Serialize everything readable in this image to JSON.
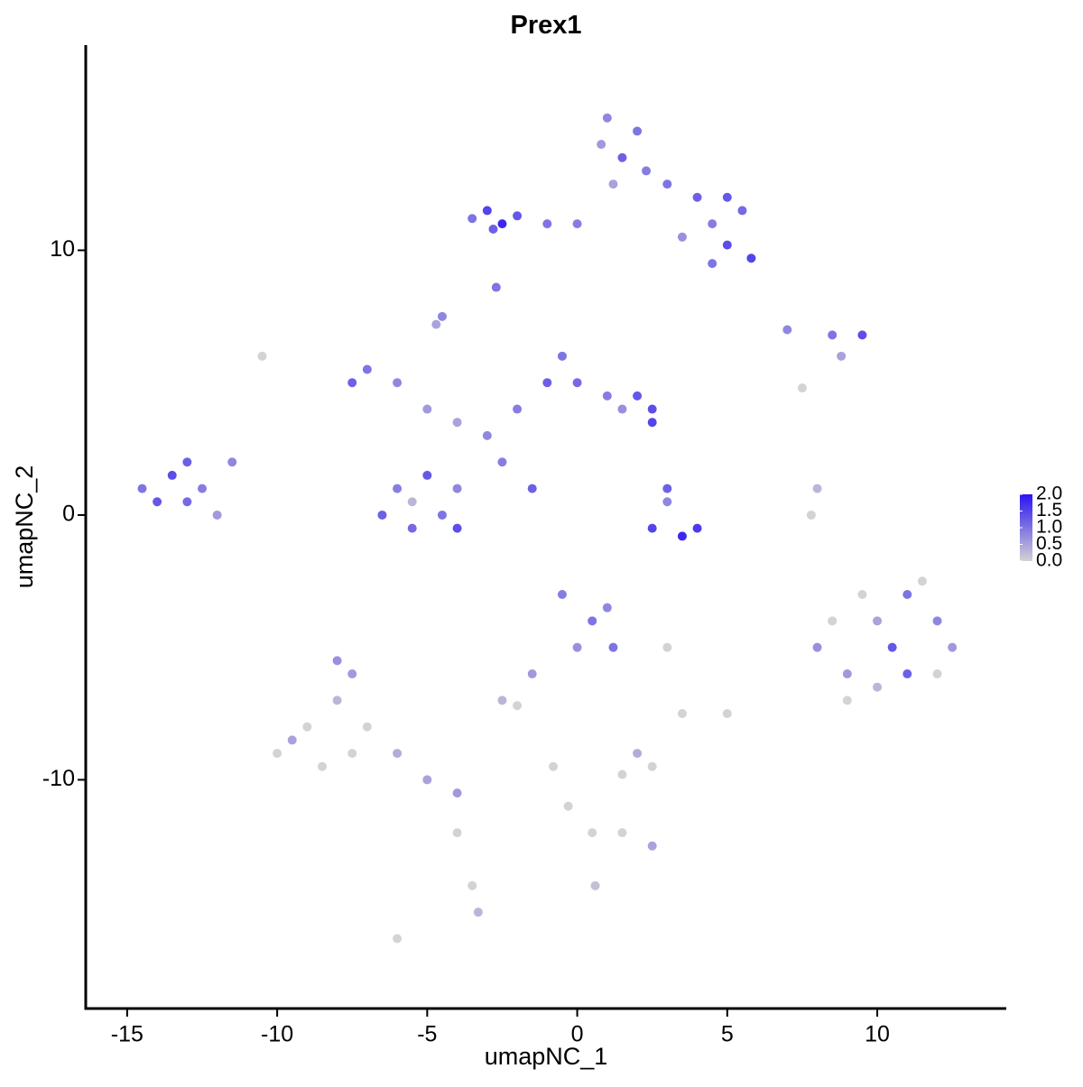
{
  "chart_data": {
    "type": "scatter",
    "title": "Prex1",
    "x_label": "umapNC_1",
    "y_label": "umapNC_2",
    "xlim": [
      -16.38,
      14.3
    ],
    "ylim": [
      -18.64,
      17.75
    ],
    "xticks": [
      -15,
      -10,
      -5,
      0,
      5,
      10
    ],
    "yticks": [
      -10,
      0,
      10
    ],
    "color_low": "#d3d3d3",
    "color_high": "#2a14f2",
    "clim": [
      0,
      2
    ],
    "legend_ticks": [
      {
        "value": 2,
        "label": "2.0"
      },
      {
        "value": 1.5,
        "label": "1.5"
      },
      {
        "value": 1,
        "label": "1.0"
      },
      {
        "value": 0.5,
        "label": "0.5"
      },
      {
        "value": 0,
        "label": "0.0"
      }
    ],
    "x": [
      1,
      2,
      1.5,
      0.8,
      2.3,
      1.2,
      3,
      4,
      5,
      5.5,
      4.5,
      5,
      5.8,
      4.5,
      3.5,
      -3,
      -2.5,
      -2,
      -1,
      0,
      -2.8,
      -3.5,
      -2.7,
      7,
      8.5,
      9.5,
      8.8,
      -7,
      -7.5,
      -6,
      -5,
      -4,
      -3,
      -2,
      -1,
      -0.5,
      0,
      1,
      2,
      2.5,
      2.5,
      1.5,
      -4.5,
      -2.5,
      -1.5,
      -6,
      -6.5,
      -5.5,
      -4.5,
      -4,
      -5,
      -4,
      -5.5,
      -14.5,
      -13.5,
      -13,
      -12.5,
      -12,
      -11.5,
      -14,
      -13,
      3,
      2.5,
      3.5,
      4,
      3,
      8,
      7.8,
      8,
      9,
      10,
      11,
      12,
      12.5,
      11,
      10,
      9,
      12,
      10.5,
      9.5,
      11.5,
      8.5,
      -0.5,
      0.5,
      0,
      1,
      1.2,
      -1.5,
      -2.5,
      -2,
      3,
      -10,
      -9,
      -8,
      -8.5,
      -7.5,
      -9.5,
      -7,
      -6,
      -5,
      -4,
      -8,
      -7.5,
      -3.5,
      -3.3,
      -4,
      2.5,
      2,
      1.5,
      5,
      3.5,
      -0.8,
      -0.3,
      0.5,
      1.5,
      2.5,
      0.6,
      -6,
      -10.5,
      7.5,
      -4.7
    ],
    "y": [
      15,
      14.5,
      13.5,
      14,
      13,
      12.5,
      12.5,
      12,
      12,
      11.5,
      11,
      10.2,
      9.7,
      9.5,
      10.5,
      11.5,
      11,
      11.3,
      11,
      11,
      10.8,
      11.2,
      8.6,
      7,
      6.8,
      6.8,
      6,
      5.5,
      5,
      5,
      4,
      3.5,
      3,
      4,
      5,
      6,
      5,
      4.5,
      4.5,
      4,
      3.5,
      4,
      7.5,
      2,
      1,
      1,
      0,
      -0.5,
      0,
      1,
      1.5,
      -0.5,
      0.5,
      1,
      1.5,
      0.5,
      1,
      0,
      2,
      0.5,
      2,
      1,
      -0.5,
      -0.8,
      -0.5,
      0.5,
      1,
      0,
      -5,
      -6,
      -4,
      -3,
      -4,
      -5,
      -6,
      -6.5,
      -7,
      -6,
      -5,
      -3,
      -2.5,
      -4,
      -3,
      -4,
      -5,
      -3.5,
      -5,
      -6,
      -7,
      -7.2,
      -5,
      -9,
      -8,
      -7,
      -9.5,
      -6,
      -8.5,
      -8,
      -9,
      -10,
      -10.5,
      -5.5,
      -9,
      -14,
      -15,
      -12,
      -9.5,
      -9,
      -9.8,
      -7.5,
      -7.5,
      -9.5,
      -11,
      -12,
      -12,
      -12.5,
      -14,
      -16,
      6,
      4.8,
      7.2
    ],
    "values": [
      0.8,
      1,
      1.2,
      0.6,
      0.9,
      0.5,
      1,
      1.2,
      1.3,
      1.1,
      0.9,
      1.4,
      1.5,
      1,
      0.7,
      1.5,
      1.8,
      1.3,
      1,
      0.9,
      1.2,
      1,
      1,
      0.8,
      1,
      1.4,
      0.5,
      1,
      1.2,
      0.8,
      0.6,
      0.5,
      0.8,
      0.9,
      1.2,
      1,
      1.1,
      0.9,
      1.3,
      1.4,
      1.5,
      0.7,
      0.8,
      0.9,
      1.2,
      0.9,
      1.2,
      1.1,
      1,
      0.8,
      1.3,
      1.4,
      0.3,
      1,
      1.4,
      1.1,
      0.9,
      0.6,
      0.8,
      1.3,
      1.2,
      1.2,
      1.5,
      1.8,
      1.6,
      0.8,
      0.3,
      0,
      0.7,
      0.6,
      0.5,
      1,
      0.8,
      0.6,
      1.2,
      0.3,
      0,
      0,
      1.3,
      0,
      0,
      0,
      0.9,
      1,
      0.7,
      0.8,
      1,
      0.6,
      0.3,
      0,
      0,
      0,
      0,
      0.3,
      0,
      0.6,
      0.5,
      0,
      0.4,
      0.5,
      0.6,
      0.7,
      0,
      0,
      0.3,
      0,
      0,
      0.4,
      0,
      0,
      0,
      0,
      0,
      0,
      0,
      0.5,
      0.2,
      0,
      0,
      0,
      0.5
    ]
  }
}
